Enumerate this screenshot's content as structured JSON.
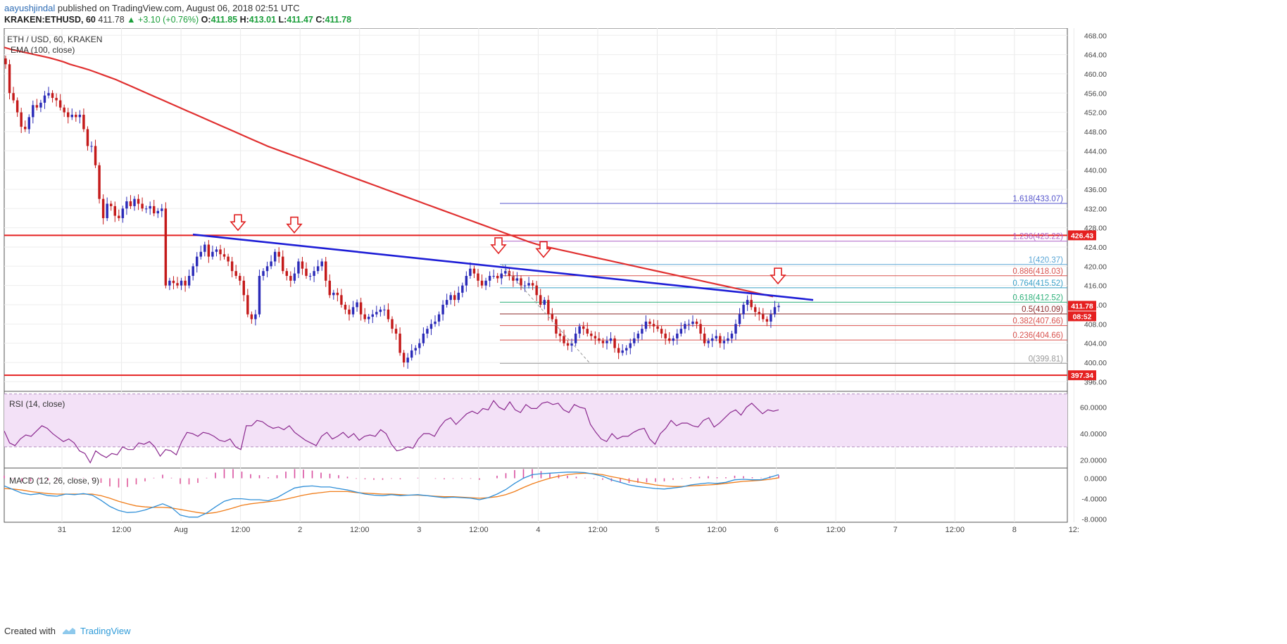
{
  "header": {
    "publisher": "aayushjindal",
    "published_text": "published on TradingView.com, August 06, 2018 02:51 UTC",
    "symbol": "KRAKEN:ETHUSD, 60",
    "last": "411.78",
    "change": "▲ +3.10 (+0.76%)",
    "o_label": "O:",
    "o_val": "411.85",
    "h_label": "H:",
    "h_val": "413.01",
    "l_label": "L:",
    "l_val": "411.47",
    "c_label": "C:",
    "c_val": "411.78"
  },
  "legend": {
    "main": "ETH / USD, 60, KRAKEN",
    "ema": "EMA (100, close)",
    "rsi": "RSI (14, close)",
    "macd": "MACD (12, 26, close, 9)"
  },
  "footer": {
    "created": "Created with",
    "brand": "TradingView"
  },
  "colors": {
    "up": "#2b2bb8",
    "down": "#c41a1a",
    "ema": "#e03030",
    "trendline": "#1d1dd6",
    "horizontal": "#e52020",
    "rsi": "#8b2a8f",
    "rsi_band": "#f3e1f7",
    "macd": "#2f8fd8",
    "signal": "#f07d1a",
    "hist": "#d94fa0"
  },
  "chart_data": [
    {
      "type": "candlestick",
      "title": "ETH / USD, 60, KRAKEN",
      "y_ticks": [
        "468.00",
        "464.00",
        "460.00",
        "456.00",
        "452.00",
        "448.00",
        "444.00",
        "440.00",
        "436.00",
        "432.00",
        "428.00",
        "424.00",
        "420.00",
        "416.00",
        "412.00",
        "408.00",
        "404.00",
        "400.00",
        "396.00"
      ],
      "x_ticks": [
        "31",
        "12:00",
        "Aug",
        "12:00",
        "2",
        "12:00",
        "3",
        "12:00",
        "4",
        "12:00",
        "5",
        "12:00",
        "6",
        "12:00",
        "7",
        "12:00",
        "8",
        "12:"
      ],
      "ylim": [
        394.0,
        469.5
      ],
      "close": [
        462.0,
        456.0,
        454.5,
        452.0,
        449.0,
        448.5,
        451.0,
        453.5,
        453.0,
        454.0,
        455.5,
        456.0,
        455.0,
        454.5,
        453.0,
        452.0,
        451.0,
        451.5,
        451.0,
        451.5,
        448.5,
        445.0,
        445.0,
        441.0,
        434.0,
        430.0,
        433.0,
        432.5,
        430.5,
        430.0,
        432.0,
        433.5,
        432.5,
        434.0,
        433.0,
        432.0,
        432.0,
        432.5,
        431.0,
        431.5,
        432.0,
        416.0,
        417.0,
        416.5,
        416.0,
        417.0,
        416.0,
        418.0,
        420.0,
        422.0,
        423.0,
        424.5,
        422.0,
        423.0,
        423.5,
        422.5,
        422.0,
        421.0,
        419.0,
        418.0,
        417.0,
        414.0,
        410.0,
        409.0,
        410.0,
        418.0,
        419.0,
        420.0,
        421.0,
        423.0,
        422.0,
        419.0,
        418.0,
        417.0,
        418.5,
        421.0,
        419.5,
        418.0,
        418.0,
        419.0,
        420.0,
        421.0,
        417.0,
        414.0,
        414.5,
        414.0,
        412.0,
        411.0,
        410.0,
        411.5,
        412.5,
        410.0,
        409.0,
        409.5,
        410.0,
        410.5,
        411.0,
        411.0,
        409.0,
        407.0,
        406.0,
        402.0,
        400.0,
        401.0,
        402.5,
        403.0,
        404.0,
        406.0,
        407.0,
        408.0,
        408.5,
        410.0,
        412.0,
        413.0,
        414.0,
        413.0,
        414.5,
        416.0,
        418.0,
        419.5,
        418.5,
        417.0,
        416.0,
        417.0,
        418.0,
        418.0,
        417.5,
        418.5,
        419.0,
        418.0,
        417.0,
        417.5,
        416.0,
        416.0,
        416.5,
        416.0,
        414.0,
        412.0,
        413.0,
        410.0,
        409.0,
        406.0,
        405.5,
        404.0,
        403.5,
        404.0,
        406.0,
        407.5,
        407.0,
        406.0,
        405.5,
        405.0,
        404.5,
        404.0,
        404.5,
        405.0,
        403.0,
        402.0,
        402.5,
        403.0,
        404.0,
        405.0,
        406.0,
        407.0,
        408.5,
        408.0,
        407.5,
        407.0,
        406.0,
        405.0,
        404.5,
        405.0,
        406.0,
        407.0,
        408.0,
        408.0,
        408.5,
        408.0,
        406.0,
        404.0,
        404.5,
        405.0,
        405.5,
        404.0,
        404.5,
        405.0,
        406.0,
        408.0,
        410.0,
        412.0,
        413.0,
        411.5,
        410.5,
        410.0,
        409.0,
        408.5,
        410.0,
        411.5,
        411.78
      ],
      "ema_100": [
        465.5,
        465.1,
        464.8,
        464.5,
        464.2,
        463.9,
        463.6,
        463.3,
        462.9,
        462.5,
        462.0,
        461.6,
        461.2,
        460.8,
        460.3,
        459.8,
        459.3,
        458.8,
        458.2,
        457.6,
        457.0,
        456.4,
        455.8,
        455.2,
        454.6,
        454.0,
        453.4,
        452.8,
        452.2,
        451.6,
        451.0,
        450.4,
        449.8,
        449.2,
        448.6,
        448.0,
        447.4,
        446.8,
        446.2,
        445.6,
        445.0,
        444.5,
        444.0,
        443.5,
        443.0,
        442.5,
        442.0,
        441.5,
        441.0,
        440.5,
        440.0,
        439.5,
        439.0,
        438.5,
        438.0,
        437.5,
        437.0,
        436.5,
        436.0,
        435.5,
        435.0,
        434.5,
        434.0,
        433.5,
        433.0,
        432.5,
        432.0,
        431.5,
        431.0,
        430.5,
        430.0,
        429.5,
        429.0,
        428.5,
        428.0,
        427.5,
        427.0,
        426.5,
        426.0,
        425.5,
        425.0,
        424.6,
        424.2,
        423.9,
        423.6,
        423.3,
        423.0,
        422.7,
        422.4,
        422.1,
        421.8,
        421.5,
        421.2,
        420.9,
        420.6,
        420.3,
        420.0,
        419.7,
        419.4,
        419.1,
        418.8,
        418.5,
        418.2,
        417.9,
        417.6,
        417.3,
        417.0,
        416.7,
        416.4,
        416.1,
        415.8,
        415.5,
        415.2,
        414.9,
        414.6,
        414.3,
        414.0,
        413.7
      ],
      "trendline": [
        [
          426.6,
          "Aug 12:00 - 06:00"
        ],
        [
          413.0,
          "6 12:00 - 10:00"
        ]
      ],
      "horizontal_levels": [
        "426.43",
        "397.34"
      ],
      "fib_levels": [
        {
          "label": "1.618(433.07)",
          "value": 433.07,
          "color": "#5555cc"
        },
        {
          "label": "1.236(425.22)",
          "value": 425.22,
          "color": "#b063c8"
        },
        {
          "label": "1(420.37)",
          "value": 420.37,
          "color": "#5aa6d6"
        },
        {
          "label": "0.886(418.03)",
          "value": 418.03,
          "color": "#d9534f"
        },
        {
          "label": "0.764(415.52)",
          "value": 415.52,
          "color": "#3aa0c8"
        },
        {
          "label": "0.618(412.52)",
          "value": 412.52,
          "color": "#2eb07a"
        },
        {
          "label": "0.5(410.09)",
          "value": 410.09,
          "color": "#8b2a2a"
        },
        {
          "label": "0.382(407.66)",
          "value": 407.66,
          "color": "#d9534f"
        },
        {
          "label": "0.236(404.66)",
          "value": 404.66,
          "color": "#d9534f"
        },
        {
          "label": "0(399.81)",
          "value": 399.81,
          "color": "#999999"
        }
      ],
      "price_badges": [
        {
          "text": "426.43",
          "value": 426.43,
          "color": "#e52020"
        },
        {
          "text": "411.78",
          "value": 411.78,
          "color": "#e52020"
        },
        {
          "text": "08:52",
          "value": 409.6,
          "color": "#e52020"
        },
        {
          "text": "397.34",
          "value": 397.34,
          "color": "#e52020"
        }
      ]
    },
    {
      "type": "line",
      "title": "RSI (14, close)",
      "y_ticks": [
        "60.0000",
        "40.0000",
        "20.0000"
      ],
      "ylim": [
        14,
        72
      ],
      "band": [
        30,
        70
      ],
      "values": [
        42,
        33,
        31,
        36,
        39,
        38,
        42,
        46,
        44,
        40,
        37,
        34,
        36,
        33,
        27,
        25,
        18,
        27,
        24,
        22,
        25,
        24,
        30,
        28,
        28,
        33,
        32,
        34,
        30,
        23,
        28,
        27,
        24,
        34,
        41,
        40,
        38,
        41,
        40,
        38,
        35,
        34,
        36,
        30,
        28,
        46,
        46,
        50,
        49,
        46,
        44,
        45,
        43,
        46,
        41,
        38,
        35,
        33,
        31,
        38,
        41,
        36,
        38,
        41,
        37,
        40,
        35,
        38,
        39,
        38,
        43,
        40,
        32,
        27,
        28,
        30,
        29,
        36,
        40,
        40,
        38,
        45,
        50,
        52,
        47,
        51,
        55,
        57,
        55,
        59,
        58,
        65,
        60,
        58,
        64,
        58,
        56,
        62,
        59,
        59,
        63,
        64,
        62,
        63,
        58,
        56,
        62,
        60,
        59,
        47,
        41,
        36,
        34,
        40,
        36,
        38,
        38,
        41,
        43,
        44,
        36,
        32,
        40,
        44,
        50,
        46,
        48,
        48,
        46,
        45,
        50,
        52,
        45,
        48,
        52,
        56,
        58,
        54,
        60,
        63,
        59,
        55,
        58,
        57,
        58
      ]
    },
    {
      "type": "line",
      "title": "MACD (12, 26, close, 9)",
      "y_ticks": [
        "0.0000",
        "-4.0000",
        "-8.0000"
      ],
      "ylim": [
        -8.6,
        2.0
      ],
      "macd": [
        -1.5,
        -2.2,
        -2.9,
        -3.2,
        -3.0,
        -3.4,
        -3.5,
        -3.1,
        -3.2,
        -3.0,
        -3.3,
        -4.3,
        -5.5,
        -6.3,
        -6.7,
        -6.6,
        -6.2,
        -5.6,
        -5.0,
        -5.7,
        -7.2,
        -7.6,
        -7.6,
        -6.8,
        -5.6,
        -4.5,
        -4.0,
        -4.0,
        -4.2,
        -4.2,
        -4.4,
        -3.8,
        -2.8,
        -1.9,
        -1.6,
        -1.5,
        -1.7,
        -1.7,
        -2.0,
        -2.3,
        -2.7,
        -3.1,
        -3.3,
        -3.4,
        -3.2,
        -3.4,
        -3.3,
        -3.2,
        -3.4,
        -3.6,
        -3.8,
        -3.7,
        -3.8,
        -3.9,
        -4.2,
        -3.8,
        -3.1,
        -2.2,
        -1.0,
        0.0,
        0.7,
        0.9,
        1.0,
        1.1,
        1.2,
        1.2,
        1.1,
        0.8,
        0.4,
        -0.3,
        -0.8,
        -1.3,
        -1.6,
        -1.8,
        -2.0,
        -2.1,
        -1.9,
        -1.7,
        -1.3,
        -1.1,
        -0.9,
        -1.0,
        -0.8,
        -0.3,
        -0.2,
        -0.3,
        -0.3,
        0.2,
        0.7
      ],
      "signal": [
        -2.0,
        -2.1,
        -2.3,
        -2.6,
        -2.8,
        -3.0,
        -3.1,
        -3.1,
        -3.1,
        -3.1,
        -3.1,
        -3.4,
        -3.9,
        -4.5,
        -5.0,
        -5.4,
        -5.6,
        -5.7,
        -5.7,
        -5.8,
        -6.1,
        -6.4,
        -6.7,
        -6.9,
        -6.7,
        -6.3,
        -5.8,
        -5.3,
        -5.0,
        -4.8,
        -4.6,
        -4.4,
        -4.1,
        -3.7,
        -3.3,
        -3.0,
        -2.8,
        -2.6,
        -2.6,
        -2.6,
        -2.8,
        -2.9,
        -3.0,
        -3.1,
        -3.1,
        -3.2,
        -3.3,
        -3.3,
        -3.4,
        -3.5,
        -3.6,
        -3.6,
        -3.7,
        -3.8,
        -3.9,
        -3.8,
        -3.6,
        -3.2,
        -2.6,
        -1.8,
        -1.1,
        -0.5,
        0.0,
        0.4,
        0.7,
        0.9,
        1.0,
        0.9,
        0.7,
        0.3,
        0.0,
        -0.4,
        -0.7,
        -1.0,
        -1.3,
        -1.5,
        -1.6,
        -1.6,
        -1.5,
        -1.4,
        -1.3,
        -1.2,
        -1.0,
        -0.8,
        -0.6,
        -0.5,
        -0.4,
        -0.2,
        0.1
      ],
      "histogram": [
        0.5,
        -0.1,
        -0.6,
        -0.6,
        -0.2,
        -0.4,
        -0.4,
        0.0,
        -0.1,
        0.1,
        -0.2,
        -0.9,
        -1.6,
        -1.8,
        -1.7,
        -1.2,
        -0.6,
        0.1,
        0.7,
        0.1,
        -1.1,
        -1.2,
        -0.9,
        0.1,
        1.1,
        1.8,
        1.8,
        1.3,
        0.8,
        0.6,
        0.2,
        0.6,
        1.3,
        1.8,
        1.7,
        1.5,
        1.1,
        0.9,
        0.6,
        0.3,
        -0.1,
        -0.2,
        -0.3,
        -0.3,
        -0.1,
        -0.2,
        0.0,
        0.1,
        0.0,
        -0.1,
        -0.2,
        -0.1,
        -0.1,
        -0.1,
        -0.3,
        0.0,
        0.5,
        1.0,
        1.6,
        1.8,
        1.8,
        1.4,
        1.0,
        0.7,
        0.5,
        0.3,
        0.1,
        -0.1,
        -0.3,
        -0.6,
        -0.8,
        -0.9,
        -0.9,
        -0.8,
        -0.7,
        -0.6,
        -0.3,
        -0.1,
        0.2,
        0.3,
        0.4,
        0.2,
        0.2,
        0.5,
        0.4,
        0.2,
        0.1,
        0.4,
        0.6
      ]
    }
  ]
}
